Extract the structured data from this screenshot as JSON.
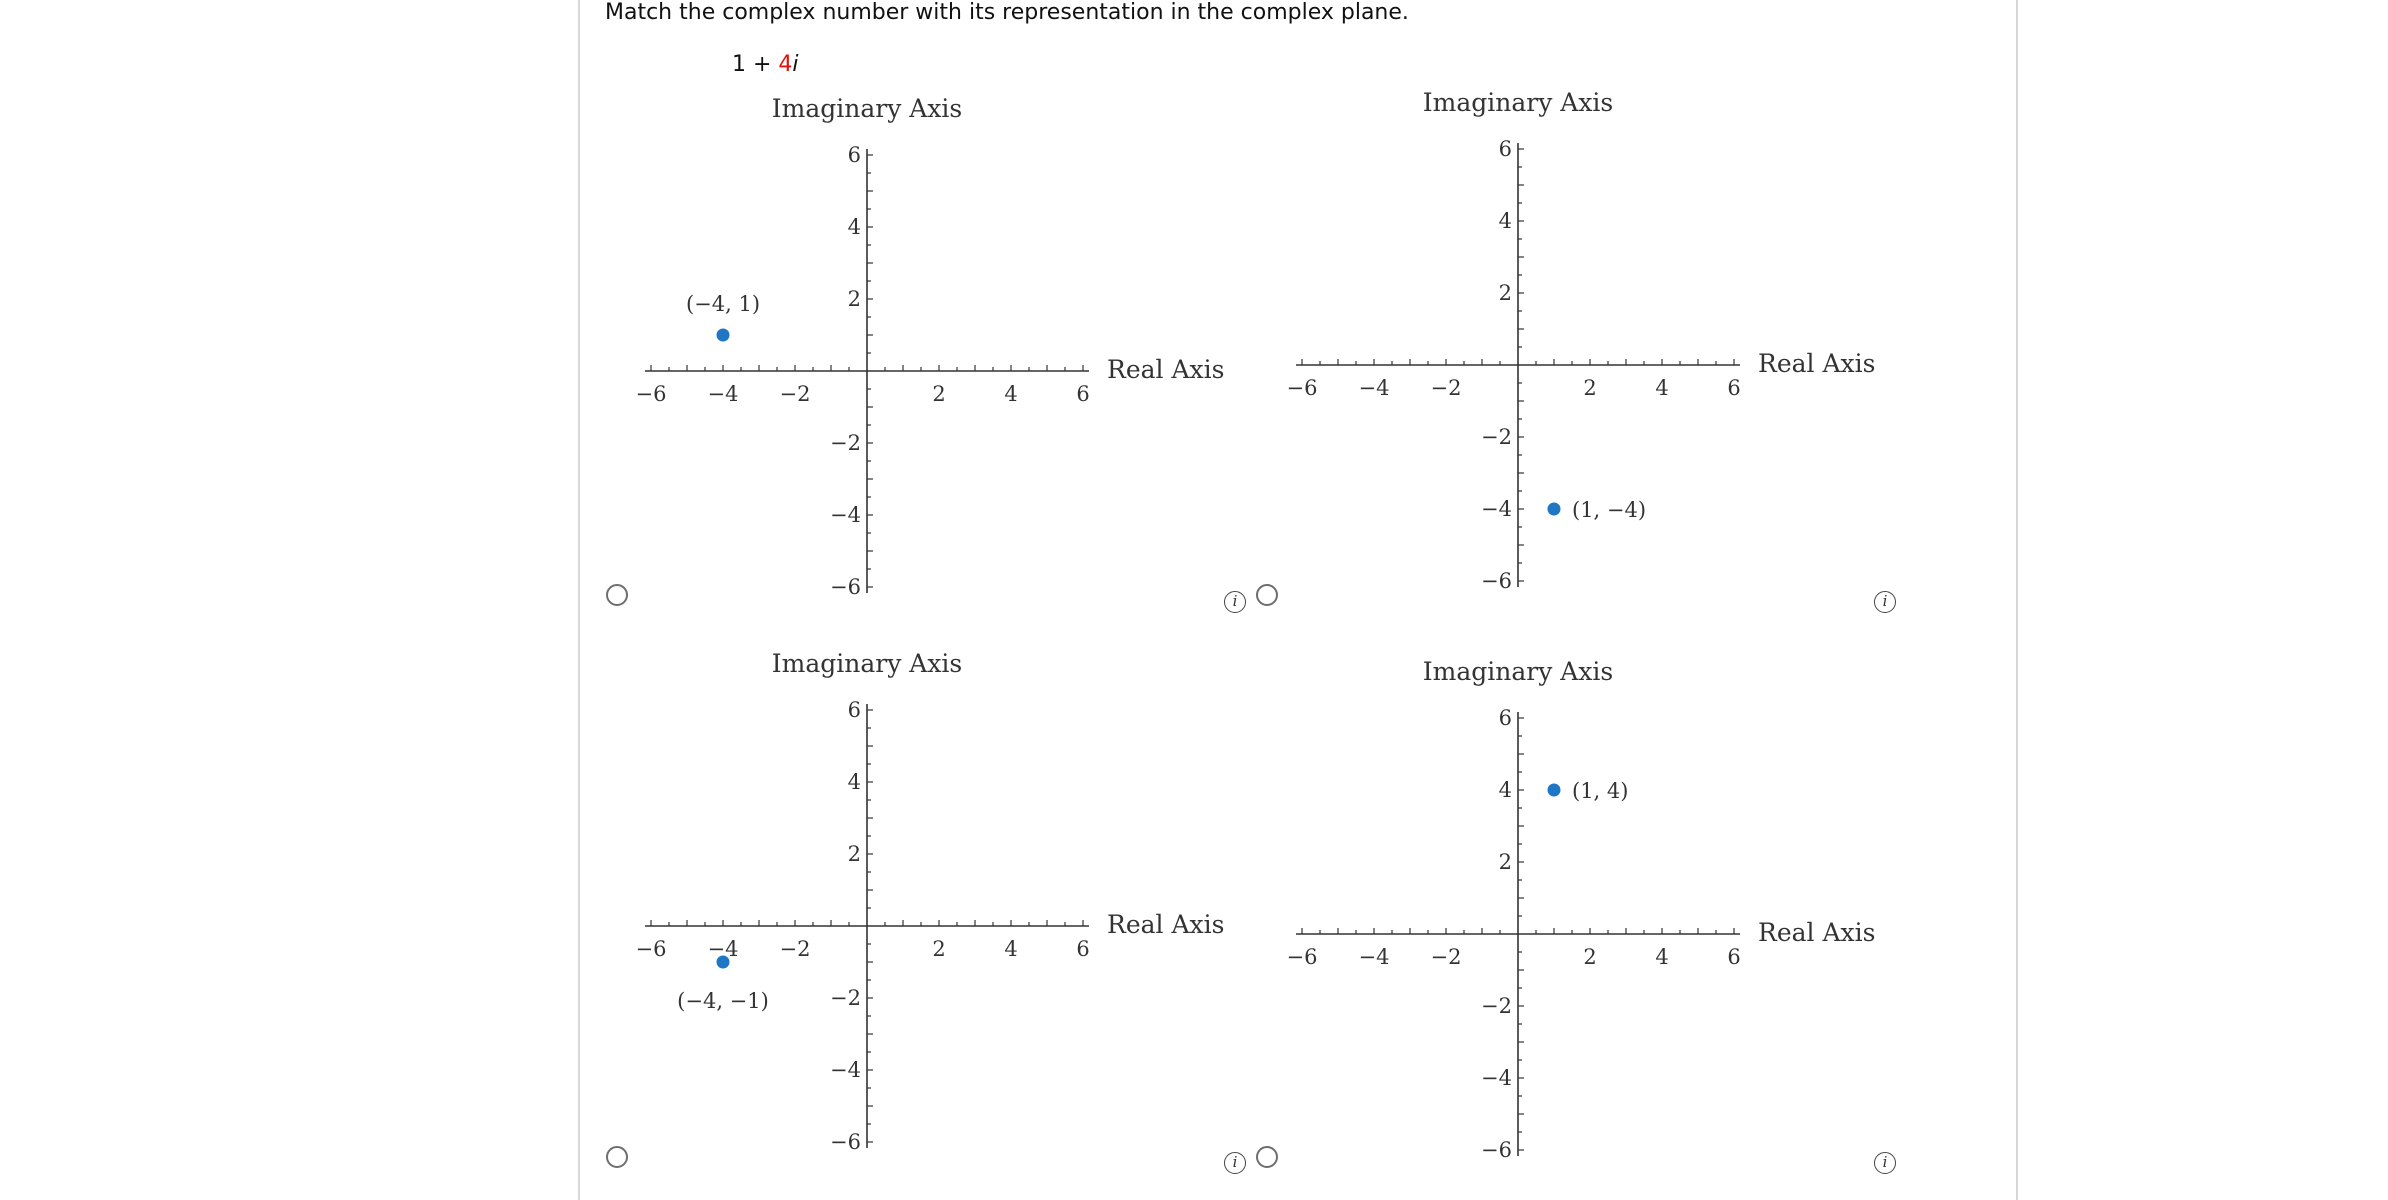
{
  "question": {
    "prompt": "Match the complex number with its representation in the complex plane.",
    "expression": {
      "real_part": "1 + ",
      "imag_coeff": "4",
      "imag_unit": "i"
    }
  },
  "colors": {
    "point": "#1e76c4",
    "imaginary_coefficient": "#e0120b",
    "axis": "#333333"
  },
  "icons": {
    "info": "info-icon",
    "radio": "radio-circle"
  },
  "info_glyph": "i",
  "chart_data": [
    {
      "type": "scatter",
      "xlabel": "Real Axis",
      "ylabel": "Imaginary Axis",
      "xlim": [
        -6,
        6
      ],
      "ylim": [
        -6,
        6
      ],
      "xticks": [
        -6,
        -4,
        -2,
        2,
        4,
        6
      ],
      "yticks": [
        -6,
        -4,
        -2,
        2,
        4,
        6
      ],
      "x_tick_labels": [
        "−6",
        "−4",
        "−2",
        "2",
        "4",
        "6"
      ],
      "y_tick_labels": [
        "−6",
        "−4",
        "−2",
        "2",
        "4",
        "6"
      ],
      "points": [
        {
          "x": -4,
          "y": 1,
          "label": "(−4, 1)"
        }
      ]
    },
    {
      "type": "scatter",
      "xlabel": "Real Axis",
      "ylabel": "Imaginary Axis",
      "xlim": [
        -6,
        6
      ],
      "ylim": [
        -6,
        6
      ],
      "xticks": [
        -6,
        -4,
        -2,
        2,
        4,
        6
      ],
      "yticks": [
        -6,
        -4,
        -2,
        2,
        4,
        6
      ],
      "x_tick_labels": [
        "−6",
        "−4",
        "−2",
        "2",
        "4",
        "6"
      ],
      "y_tick_labels": [
        "−6",
        "−4",
        "−2",
        "2",
        "4",
        "6"
      ],
      "points": [
        {
          "x": 1,
          "y": -4,
          "label": "(1, −4)"
        }
      ]
    },
    {
      "type": "scatter",
      "xlabel": "Real Axis",
      "ylabel": "Imaginary Axis",
      "xlim": [
        -6,
        6
      ],
      "ylim": [
        -6,
        6
      ],
      "xticks": [
        -6,
        -4,
        -2,
        2,
        4,
        6
      ],
      "yticks": [
        -6,
        -4,
        -2,
        2,
        4,
        6
      ],
      "x_tick_labels": [
        "−6",
        "−4",
        "−2",
        "2",
        "4",
        "6"
      ],
      "y_tick_labels": [
        "−6",
        "−4",
        "−2",
        "2",
        "4",
        "6"
      ],
      "points": [
        {
          "x": -4,
          "y": -1,
          "label": "(−4, −1)"
        }
      ]
    },
    {
      "type": "scatter",
      "xlabel": "Real Axis",
      "ylabel": "Imaginary Axis",
      "xlim": [
        -6,
        6
      ],
      "ylim": [
        -6,
        6
      ],
      "xticks": [
        -6,
        -4,
        -2,
        2,
        4,
        6
      ],
      "yticks": [
        -6,
        -4,
        -2,
        2,
        4,
        6
      ],
      "x_tick_labels": [
        "−6",
        "−4",
        "−2",
        "2",
        "4",
        "6"
      ],
      "y_tick_labels": [
        "−6",
        "−4",
        "−2",
        "2",
        "4",
        "6"
      ],
      "points": [
        {
          "x": 1,
          "y": 4,
          "label": "(1, 4)"
        }
      ]
    }
  ]
}
